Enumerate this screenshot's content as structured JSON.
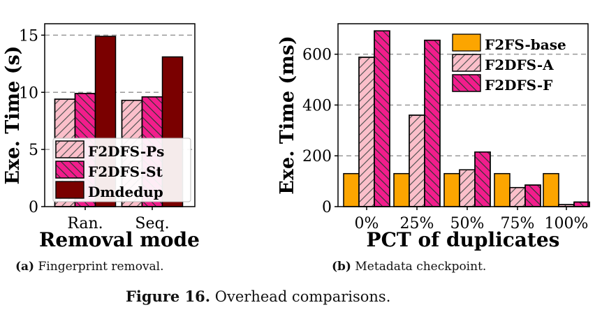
{
  "colors": {
    "f2dfs_ps": "#fbbfca",
    "f2dfs_st": "#f21d8c",
    "dmdedup": "#7a0000",
    "f2fs_base": "#fca500",
    "f2dfs_a": "#fbbfca",
    "f2dfs_f": "#f21d8c",
    "grid": "#999999"
  },
  "chart_data": [
    {
      "type": "bar",
      "categories": [
        "Ran.",
        "Seq."
      ],
      "series": [
        {
          "name": "F2DFS-Ps",
          "values": [
            9.4,
            9.3
          ],
          "pattern": "forward-hatch"
        },
        {
          "name": "F2DFS-St",
          "values": [
            9.9,
            9.6
          ],
          "pattern": "back-hatch"
        },
        {
          "name": "Dmdedup",
          "values": [
            14.9,
            13.1
          ],
          "pattern": "solid"
        }
      ],
      "xlabel": "Removal mode",
      "ylabel": "Exe. Time (s)",
      "ylim": [
        0,
        16
      ],
      "yticks": [
        "0",
        "5",
        "10",
        "15"
      ],
      "grid": true,
      "legend": "bottom"
    },
    {
      "type": "bar",
      "categories": [
        "0%",
        "25%",
        "50%",
        "75%",
        "100%"
      ],
      "series": [
        {
          "name": "F2FS-base",
          "values": [
            130,
            130,
            130,
            130,
            130
          ],
          "pattern": "solid"
        },
        {
          "name": "F2DFS-A",
          "values": [
            588,
            360,
            145,
            75,
            8
          ],
          "pattern": "forward-hatch"
        },
        {
          "name": "F2DFS-F",
          "values": [
            692,
            655,
            215,
            85,
            18
          ],
          "pattern": "back-hatch"
        }
      ],
      "xlabel": "PCT of duplicates",
      "ylabel": "Exe. Time (ms)",
      "ylim": [
        0,
        720
      ],
      "yticks": [
        "0",
        "200",
        "400",
        "600"
      ],
      "grid": true,
      "legend": "top-right"
    }
  ],
  "captions": {
    "a_label": "(a)",
    "a_text": "Fingerprint removal.",
    "b_label": "(b)",
    "b_text": "Metadata checkpoint.",
    "fig_label": "Figure 16.",
    "fig_text": "Overhead comparisons."
  }
}
